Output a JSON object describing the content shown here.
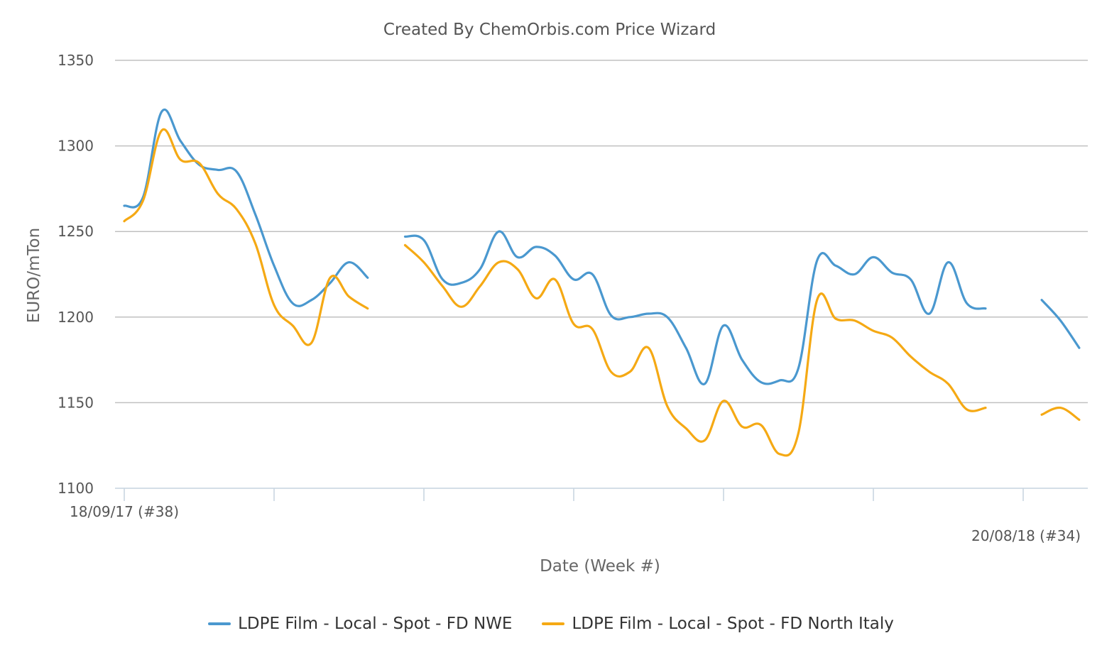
{
  "chart_data": {
    "type": "line",
    "title": "Created By ChemOrbis.com Price Wizard",
    "xlabel": "Date (Week #)",
    "ylabel": "EURO/mTon",
    "ylim": [
      1100,
      1350
    ],
    "yticks": [
      1100,
      1150,
      1200,
      1250,
      1300,
      1350
    ],
    "x_start_label": "18/09/17 (#38)",
    "x_end_label": "20/08/18 (#34)",
    "x_range": [
      0,
      48
    ],
    "grid": "horizontal",
    "legend_position": "bottom",
    "series": [
      {
        "name": "LDPE Film - Local - Spot - FD NWE",
        "color": "#4a98cf",
        "points": [
          [
            0,
            1265
          ],
          [
            1,
            1270
          ],
          [
            2,
            1320
          ],
          [
            3,
            1303
          ],
          [
            4,
            1289
          ],
          [
            5,
            1286
          ],
          [
            6,
            1285
          ],
          [
            7,
            1260
          ],
          [
            8,
            1230
          ],
          [
            9,
            1208
          ],
          [
            10,
            1210
          ],
          [
            11,
            1220
          ],
          [
            12,
            1232
          ],
          [
            13,
            1223
          ],
          null,
          [
            15,
            1247
          ],
          [
            16,
            1245
          ],
          [
            17,
            1222
          ],
          [
            18,
            1220
          ],
          [
            19,
            1228
          ],
          [
            20,
            1250
          ],
          [
            21,
            1235
          ],
          [
            22,
            1241
          ],
          [
            23,
            1236
          ],
          [
            24,
            1222
          ],
          [
            25,
            1225
          ],
          [
            26,
            1201
          ],
          [
            27,
            1200
          ],
          [
            28,
            1202
          ],
          [
            29,
            1200
          ],
          [
            30,
            1182
          ],
          [
            31,
            1161
          ],
          [
            32,
            1195
          ],
          [
            33,
            1175
          ],
          [
            34,
            1162
          ],
          [
            35,
            1163
          ],
          [
            36,
            1170
          ],
          [
            37,
            1233
          ],
          [
            38,
            1230
          ],
          [
            39,
            1225
          ],
          [
            40,
            1235
          ],
          [
            41,
            1226
          ],
          [
            42,
            1222
          ],
          [
            43,
            1202
          ],
          [
            44,
            1232
          ],
          [
            45,
            1208
          ],
          [
            46,
            1205
          ],
          null,
          [
            49,
            1210
          ],
          [
            50,
            1198
          ],
          [
            51,
            1182
          ]
        ]
      },
      {
        "name": "LDPE Film - Local - Spot - FD North Italy",
        "color": "#f5a914",
        "points": [
          [
            0,
            1256
          ],
          [
            1,
            1268
          ],
          [
            2,
            1309
          ],
          [
            3,
            1292
          ],
          [
            4,
            1290
          ],
          [
            5,
            1272
          ],
          [
            6,
            1263
          ],
          [
            7,
            1243
          ],
          [
            8,
            1207
          ],
          [
            9,
            1195
          ],
          [
            10,
            1185
          ],
          [
            11,
            1223
          ],
          [
            12,
            1212
          ],
          [
            13,
            1205
          ],
          null,
          [
            15,
            1242
          ],
          [
            16,
            1232
          ],
          [
            17,
            1218
          ],
          [
            18,
            1206
          ],
          [
            19,
            1218
          ],
          [
            20,
            1232
          ],
          [
            21,
            1228
          ],
          [
            22,
            1211
          ],
          [
            23,
            1222
          ],
          [
            24,
            1196
          ],
          [
            25,
            1193
          ],
          [
            26,
            1168
          ],
          [
            27,
            1168
          ],
          [
            28,
            1182
          ],
          [
            29,
            1148
          ],
          [
            30,
            1135
          ],
          [
            31,
            1128
          ],
          [
            32,
            1151
          ],
          [
            33,
            1136
          ],
          [
            34,
            1137
          ],
          [
            35,
            1120
          ],
          [
            36,
            1132
          ],
          [
            37,
            1210
          ],
          [
            38,
            1199
          ],
          [
            39,
            1198
          ],
          [
            40,
            1192
          ],
          [
            41,
            1188
          ],
          [
            42,
            1177
          ],
          [
            43,
            1168
          ],
          [
            44,
            1161
          ],
          [
            45,
            1146
          ],
          [
            46,
            1147
          ],
          null,
          [
            49,
            1143
          ],
          [
            50,
            1147
          ],
          [
            51,
            1140
          ]
        ]
      }
    ]
  }
}
